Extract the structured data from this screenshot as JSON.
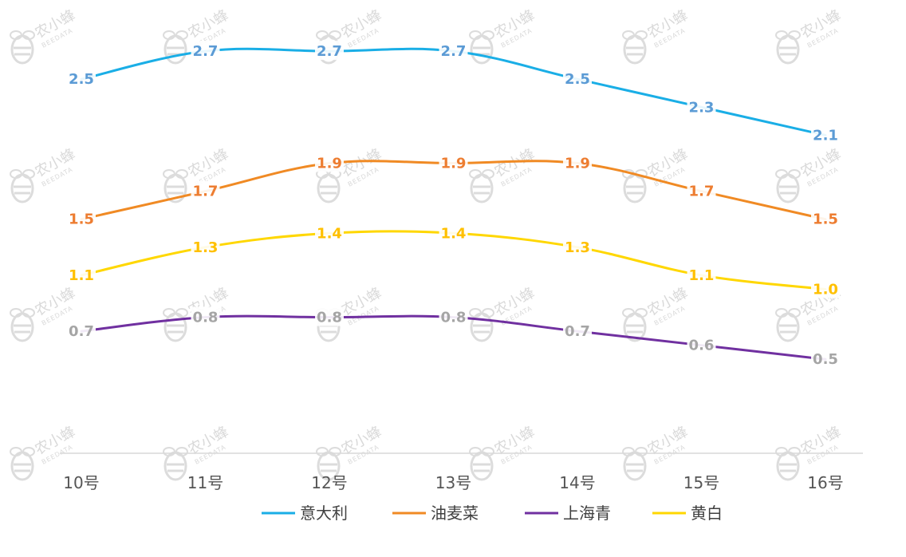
{
  "chart_data": {
    "type": "line",
    "categories": [
      "10号",
      "11号",
      "12号",
      "13号",
      "14号",
      "15号",
      "16号"
    ],
    "series": [
      {
        "name": "意大利",
        "color": "#1aaee6",
        "label_color": "#5b9bd5",
        "values": [
          2.5,
          2.7,
          2.7,
          2.7,
          2.5,
          2.3,
          2.1
        ],
        "labels": [
          "2.5",
          "2.7",
          "2.7",
          "2.7",
          "2.5",
          "2.3",
          "2.1"
        ]
      },
      {
        "name": "油麦菜",
        "color": "#f08a24",
        "label_color": "#ed7d31",
        "values": [
          1.5,
          1.7,
          1.9,
          1.9,
          1.9,
          1.7,
          1.5
        ],
        "labels": [
          "1.5",
          "1.7",
          "1.9",
          "1.9",
          "1.9",
          "1.7",
          "1.5"
        ]
      },
      {
        "name": "上海青",
        "color": "#7030a0",
        "label_color": "#a5a5a5",
        "values": [
          0.7,
          0.8,
          0.8,
          0.8,
          0.7,
          0.6,
          0.5
        ],
        "labels": [
          "0.7",
          "0.8",
          "0.8",
          "0.8",
          "0.7",
          "0.6",
          "0.5"
        ]
      },
      {
        "name": "黄白",
        "color": "#ffd700",
        "label_color": "#ffc000",
        "values": [
          1.1,
          1.3,
          1.4,
          1.4,
          1.3,
          1.1,
          1.0
        ],
        "labels": [
          "1.1",
          "1.3",
          "1.4",
          "1.4",
          "1.3",
          "1.1",
          "1.0"
        ]
      }
    ],
    "ylim": [
      0,
      2.9
    ],
    "grid": false,
    "legend_position": "bottom-center",
    "title": "",
    "xlabel": "",
    "ylabel": ""
  },
  "watermark": {
    "brand_cn": "农小蜂",
    "brand_en": "BEEDATA",
    "icon": "bee-icon"
  }
}
